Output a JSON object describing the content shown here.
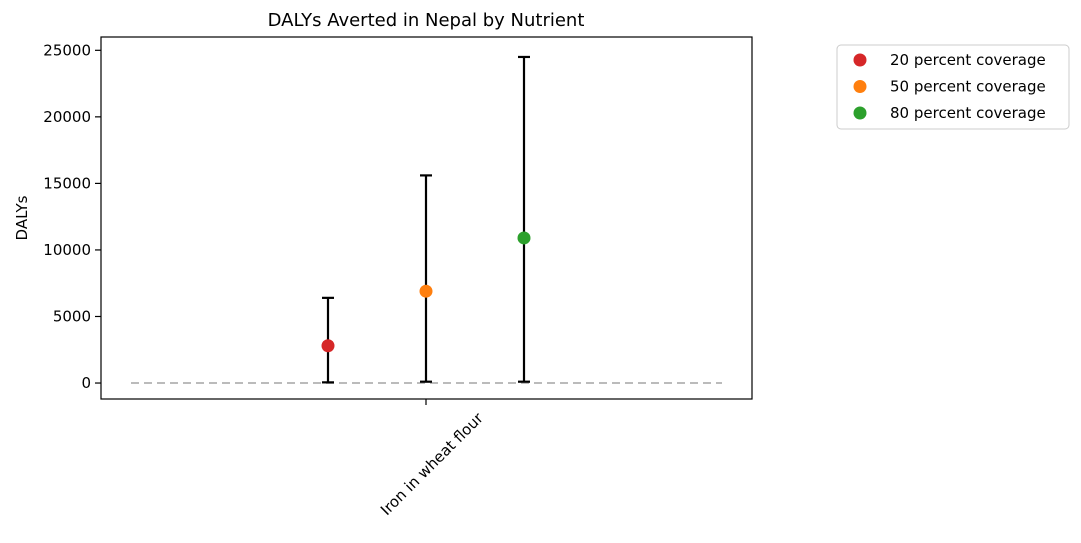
{
  "chart_data": {
    "type": "scatter",
    "title": "DALYs Averted in Nepal by Nutrient",
    "xlabel": "",
    "ylabel": "DALYs",
    "categories": [
      "Iron in wheat flour"
    ],
    "ylim": [
      -1200,
      26000
    ],
    "yticks": [
      0,
      5000,
      10000,
      15000,
      20000,
      25000
    ],
    "yticklabels": [
      "0",
      "5000",
      "10000",
      "15000",
      "20000",
      "25000"
    ],
    "reference_line": {
      "y": 0,
      "style": "dashed",
      "color": "#bbbbbb"
    },
    "legend_position": "outside-right-top",
    "grid": false,
    "series": [
      {
        "name": "20 percent coverage",
        "color": "#d62728",
        "x_offset": -1,
        "value": 2800,
        "lower": 50,
        "upper": 6400
      },
      {
        "name": "50 percent coverage",
        "color": "#ff7f0e",
        "x_offset": 0,
        "value": 6900,
        "lower": 100,
        "upper": 15600
      },
      {
        "name": "80 percent coverage",
        "color": "#2ca02c",
        "x_offset": 1,
        "value": 10900,
        "lower": 100,
        "upper": 24500
      }
    ]
  }
}
